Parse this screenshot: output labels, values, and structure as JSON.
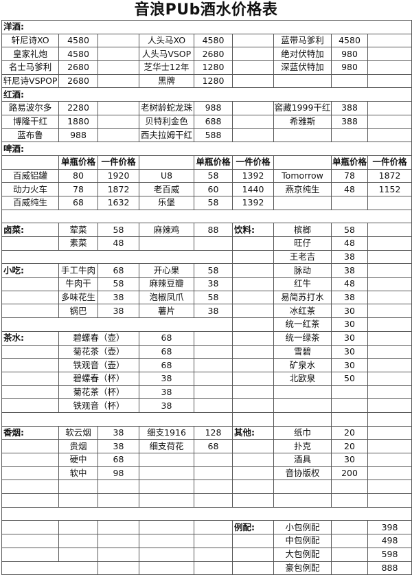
{
  "title": "音浪PUb酒水价格表",
  "rows": [
    [
      "洋酒:"
    ],
    [
      "轩尼诗XO",
      "4580",
      "",
      "人头马XO",
      "4580",
      "",
      "蓝带马爹利",
      "4580",
      ""
    ],
    [
      "皇家礼炮",
      "4580",
      "",
      "人头马VSOP",
      "2680",
      "",
      "绝对伏特加",
      "980",
      ""
    ],
    [
      "名士马爹利",
      "2680",
      "",
      "芝华士12年",
      "1280",
      "",
      "深蓝伏特加",
      "980",
      ""
    ],
    [
      "轩尼诗VSPOP",
      "2680",
      "",
      "黑牌",
      "1280",
      "",
      "",
      "",
      ""
    ],
    [
      "红酒:"
    ],
    [
      "路易波尔多",
      "2280",
      "",
      "老树龄蛇龙珠",
      "988",
      "",
      "窖藏1999干红",
      "388",
      ""
    ],
    [
      "博隆干红",
      "1880",
      "",
      "贝特利金色",
      "688",
      "",
      "希雅斯",
      "388",
      ""
    ],
    [
      "蓝布鲁",
      "988",
      "",
      "西夫拉姆干红",
      "588",
      "",
      "",
      "",
      ""
    ],
    [
      "啤酒:"
    ],
    [
      "",
      "单瓶价格",
      "一件价格",
      "",
      "单瓶价格",
      "一件价格",
      "",
      "单瓶价格",
      "一件价格"
    ],
    [
      "百威铝罐",
      "80",
      "1920",
      "U8",
      "58",
      "1392",
      "Tomorrow",
      "78",
      "1872"
    ],
    [
      "动力火车",
      "78",
      "1872",
      "老百威",
      "60",
      "1440",
      "燕京纯生",
      "48",
      "1152"
    ],
    [
      "百威纯生",
      "68",
      "1632",
      "乐堡",
      "58",
      "1392",
      "",
      "",
      ""
    ],
    [
      ""
    ],
    [
      "卤菜:",
      "荤菜",
      "58",
      "麻辣鸡",
      "88",
      "饮料:",
      "槟榔",
      "58",
      ""
    ],
    [
      "",
      "素菜",
      "48",
      "",
      "",
      "",
      "旺仔",
      "48",
      ""
    ],
    [
      "",
      "",
      "王老吉",
      "38",
      ""
    ],
    [
      "小吃:",
      "手工牛肉",
      "68",
      "开心果",
      "58",
      "",
      "脉动",
      "38",
      ""
    ],
    [
      "",
      "牛肉干",
      "58",
      "麻辣豆瓣",
      "38",
      "",
      "红牛",
      "48",
      ""
    ],
    [
      "",
      "多味花生",
      "38",
      "泡椒凤爪",
      "58",
      "",
      "易简苏打水",
      "38",
      ""
    ],
    [
      "",
      "锅巴",
      "38",
      "薯片",
      "38",
      "",
      "冰红茶",
      "30",
      ""
    ],
    [
      "",
      "",
      "统一红茶",
      "30",
      ""
    ],
    [
      "茶水:",
      "碧螺春（壶）",
      "68",
      "",
      "",
      "统一绿茶",
      "30",
      ""
    ],
    [
      "",
      "菊花茶（壶）",
      "68",
      "",
      "",
      "雪碧",
      "30",
      ""
    ],
    [
      "",
      "铁观音（壶）",
      "68",
      "",
      "",
      "矿泉水",
      "30",
      ""
    ],
    [
      "",
      "碧螺春（杯）",
      "38",
      "",
      "",
      "北欧泉",
      "50",
      ""
    ],
    [
      "",
      "菊花茶（杯）",
      "38",
      "",
      "",
      "",
      "",
      ""
    ],
    [
      "",
      "铁观音（杯）",
      "38",
      "",
      "",
      "",
      "",
      ""
    ],
    [
      "",
      "",
      "",
      "",
      ""
    ],
    [
      "香烟:",
      "软云烟",
      "38",
      "细支1916",
      "128",
      "其他:",
      "纸巾",
      "20",
      ""
    ],
    [
      "",
      "贵烟",
      "38",
      "细支荷花",
      "68",
      "",
      "扑克",
      "20",
      ""
    ],
    [
      "",
      "硬中",
      "68",
      "",
      "",
      "",
      "酒具",
      "30",
      ""
    ],
    [
      "",
      "软中",
      "98",
      "",
      "",
      "",
      "音协版权",
      "200",
      ""
    ],
    [
      "",
      "",
      "",
      "",
      "",
      "",
      "",
      "",
      ""
    ],
    [
      "",
      "",
      "",
      "",
      "",
      "",
      "",
      "",
      ""
    ],
    [
      ""
    ],
    [
      "",
      "",
      "",
      "",
      "",
      "例配:",
      "小包例配",
      "",
      "398"
    ],
    [
      "",
      "",
      "",
      "",
      "",
      "",
      "中包例配",
      "",
      "498"
    ],
    [
      "",
      "",
      "",
      "",
      "",
      "",
      "大包例配",
      "",
      "598"
    ],
    [
      "",
      "",
      "",
      "",
      "",
      "豪包例配",
      "",
      "888"
    ]
  ]
}
